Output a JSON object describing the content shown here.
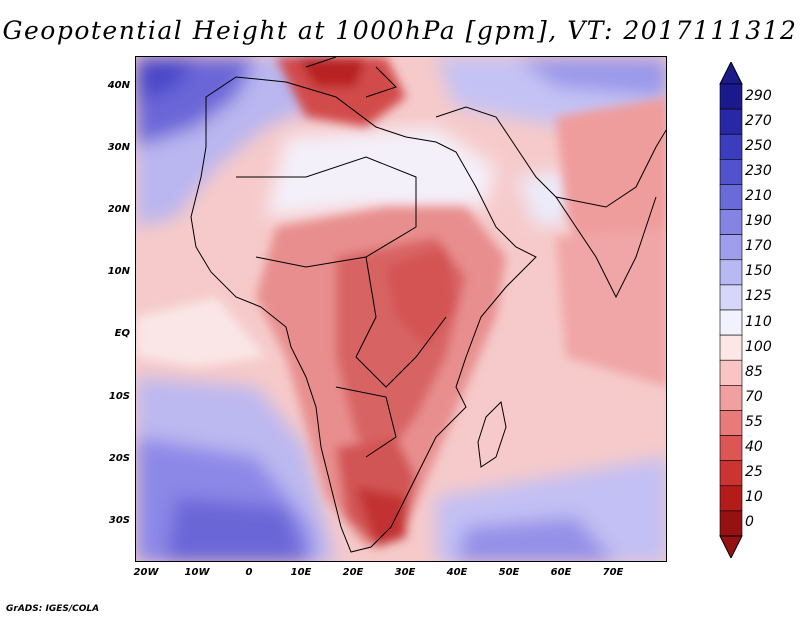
{
  "title": "Geopotential Height at 1000hPa [gpm], VT: 2017111312",
  "credit": "GrADS: IGES/COLA",
  "map": {
    "lat_labels": [
      "40N",
      "30N",
      "20N",
      "10N",
      "EQ",
      "10S",
      "20S",
      "30S"
    ],
    "lon_labels": [
      "20W",
      "10W",
      "0",
      "10E",
      "20E",
      "30E",
      "40E",
      "50E",
      "60E",
      "70E"
    ]
  },
  "colorbar": {
    "labels": [
      "290",
      "270",
      "250",
      "230",
      "210",
      "190",
      "170",
      "150",
      "125",
      "110",
      "100",
      "85",
      "70",
      "55",
      "40",
      "25",
      "10",
      "0"
    ],
    "colors": [
      "#1a1a8c",
      "#2828a6",
      "#3c3cbe",
      "#5252cc",
      "#6a6ad8",
      "#8484e2",
      "#9e9eec",
      "#b8b8f2",
      "#d6d6f8",
      "#f2f2fc",
      "#fde6e6",
      "#f8c4c4",
      "#f0a0a0",
      "#e87a7a",
      "#dc5656",
      "#cc3434",
      "#b41c1c",
      "#961212"
    ]
  },
  "palette": {
    "deep_blue": "#4a46c8",
    "mid_blue": "#8c88e8",
    "light_blue": "#c8c8f4",
    "white": "#fbf6f6",
    "light_red": "#f4bcbc",
    "mid_red": "#e88888",
    "red": "#d85454",
    "dark_red": "#c02828",
    "boundary": "#000000"
  }
}
